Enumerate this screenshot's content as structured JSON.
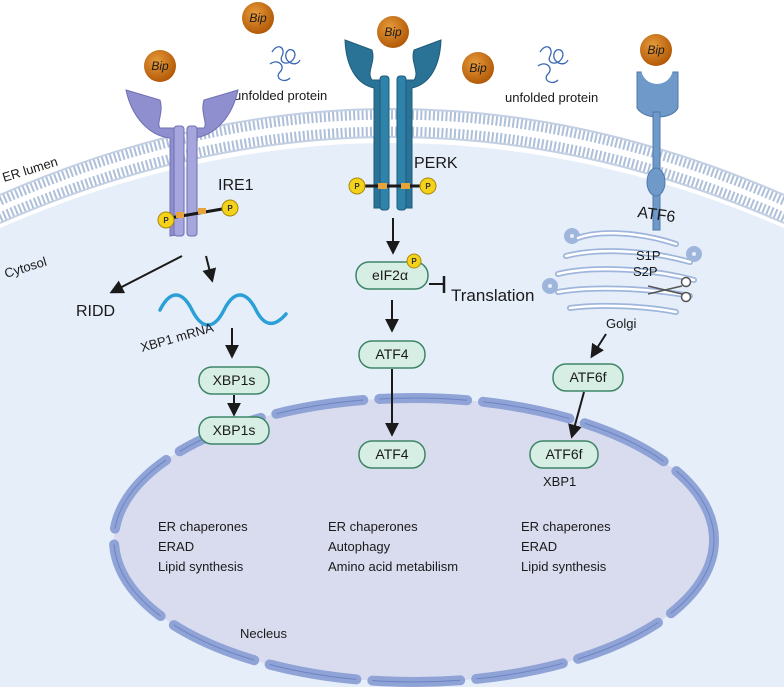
{
  "regions": {
    "er_lumen": "ER lumen",
    "cytosol": "Cytosol",
    "nucleus": "Necleus",
    "golgi": "Golgi"
  },
  "bip_label": "Bip",
  "unfolded_protein_label": "unfolded protein",
  "phospho_label": "P",
  "receptors": {
    "ire1": "IRE1",
    "perk": "PERK",
    "atf6": "ATF6"
  },
  "proteases": {
    "s1p": "S1P",
    "s2p": "S2P"
  },
  "pathway_ire1": {
    "ridd": "RIDD",
    "mrna": "XBP1 mRNA",
    "cyto_box": "XBP1s",
    "nuc_box": "XBP1s",
    "targets": [
      "ER chaperones",
      "ERAD",
      "Lipid synthesis"
    ]
  },
  "pathway_perk": {
    "eif2a": "eIF2α",
    "translation": "Translation",
    "cyto_box": "ATF4",
    "nuc_box": "ATF4",
    "targets": [
      "ER chaperones",
      "Autophagy",
      "Amino acid metabilism"
    ]
  },
  "pathway_atf6": {
    "cyto_box": "ATF6f",
    "nuc_box": "ATF6f",
    "nuc_sub": "XBP1",
    "targets": [
      "ER chaperones",
      "ERAD",
      "Lipid synthesis"
    ]
  },
  "colors": {
    "cytosol": "#e6eefa",
    "membrane": "#aebfd9",
    "nucleus": "#d9dcef",
    "nuclear_envelope": "#8fa3d6",
    "bip": "#c7650c",
    "ire1": "#8f8fcf",
    "perk": "#2a7396",
    "atf6": "#6f99c9",
    "box_fill": "#d7eee5",
    "box_stroke": "#3d8566",
    "mrna": "#2b9fd8",
    "phospho": "#f5d21a"
  }
}
